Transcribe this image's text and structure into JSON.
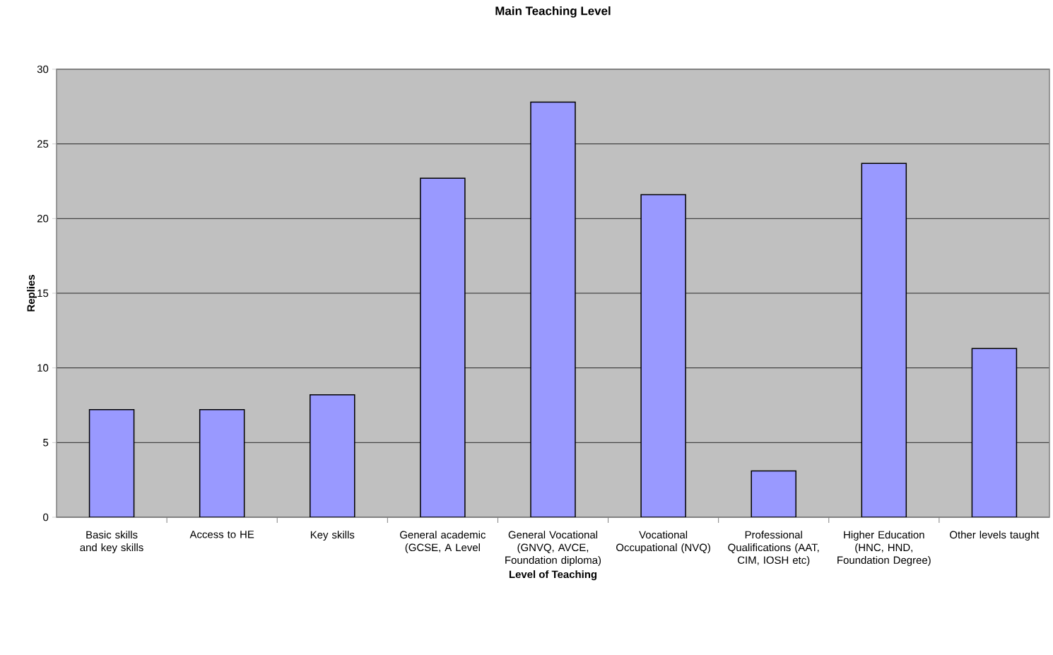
{
  "chart_data": {
    "type": "bar",
    "title": "Main Teaching Level",
    "xlabel": "Level of Teaching",
    "ylabel": "Replies",
    "categories": [
      "Basic skills and key skills",
      "Access to HE",
      "Key skills",
      "General academic (GCSE, A Level",
      "General Vocational (GNVQ, AVCE, Foundation diploma)",
      "Vocational Occupational (NVQ)",
      "Professional Qualifications (AAT, CIM, IOSH etc)",
      "Higher Education (HNC, HND, Foundation Degree)",
      "Other levels taught"
    ],
    "values": [
      7.2,
      7.2,
      8.2,
      22.7,
      27.8,
      21.6,
      3.1,
      23.7,
      11.3
    ],
    "color": "#9999ff",
    "ylim": [
      0,
      30
    ],
    "yticks": [
      0,
      5,
      10,
      15,
      20,
      25,
      30
    ],
    "grid": "y",
    "legend": false
  }
}
